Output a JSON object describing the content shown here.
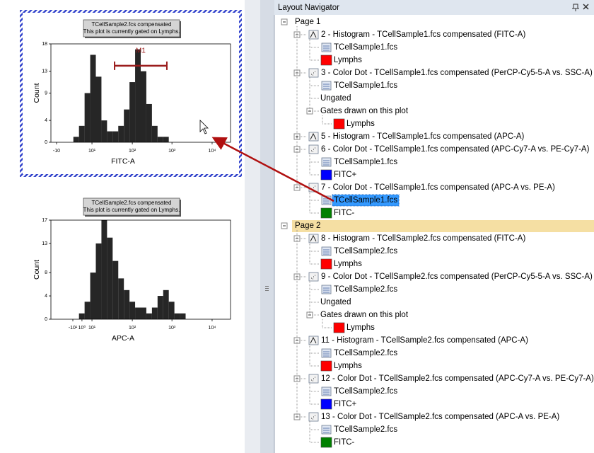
{
  "chart_data": [
    {
      "type": "histogram",
      "title": "TCellSample2.fcs compensated",
      "subtitle": "This plot is currently gated on Lymphs.",
      "x_label": "FITC-A",
      "y_label": "Count",
      "color": "#000000",
      "selected": true,
      "bins": [
        0,
        32,
        64,
        96,
        128,
        160,
        192,
        224,
        256,
        288,
        320,
        352,
        384,
        416,
        448,
        480,
        512,
        544,
        576,
        608,
        640,
        672,
        704,
        736,
        768,
        800,
        832,
        864,
        896,
        928,
        960,
        992,
        1024
      ],
      "values": [
        0,
        0,
        0,
        0,
        1,
        3,
        9,
        16,
        12,
        4,
        2,
        2,
        3,
        6,
        11,
        17,
        13,
        7,
        3,
        1,
        1,
        0,
        0,
        0,
        0,
        0,
        0,
        0,
        0,
        0,
        0,
        0
      ],
      "xlim": [
        0,
        1024
      ],
      "ylim": [
        0,
        18
      ],
      "yticks": [
        0,
        4,
        9,
        13,
        18
      ],
      "xticks": [
        {
          "value": 32,
          "label": "-10"
        },
        {
          "value": 234,
          "label": "10¹"
        },
        {
          "value": 464,
          "label": "10²"
        },
        {
          "value": 690,
          "label": "10³"
        },
        {
          "value": 919,
          "label": "10⁴"
        }
      ],
      "gate": {
        "label": "M1",
        "range": [
          363,
          661
        ],
        "level": 14,
        "color": "#9b1c1c"
      }
    },
    {
      "type": "histogram",
      "title": "TCellSample2.fcs compensated",
      "subtitle": "This plot is currently gated on Lymphs.",
      "x_label": "APC-A",
      "y_label": "Count",
      "color": "#000000",
      "selected": false,
      "bins": [
        0,
        32,
        64,
        96,
        128,
        160,
        192,
        224,
        256,
        288,
        320,
        352,
        384,
        416,
        448,
        480,
        512,
        544,
        576,
        608,
        640,
        672,
        704,
        736,
        768,
        800,
        832,
        864,
        896,
        928,
        960,
        992,
        1024
      ],
      "values": [
        0,
        0,
        0,
        0,
        0,
        1,
        3,
        8,
        13,
        17,
        14,
        10,
        7,
        5,
        3,
        2,
        2,
        1,
        2,
        4,
        5,
        3,
        1,
        1,
        0,
        0,
        0,
        0,
        0,
        0,
        0,
        0
      ],
      "xlim": [
        0,
        1024
      ],
      "ylim": [
        0,
        17
      ],
      "yticks": [
        0,
        4,
        8,
        13,
        17
      ],
      "xticks": [
        {
          "value": 125,
          "label": "-10¹"
        },
        {
          "value": 177,
          "label": "10⁰"
        },
        {
          "value": 234,
          "label": "10¹"
        },
        {
          "value": 464,
          "label": "10²"
        },
        {
          "value": 690,
          "label": "10³"
        },
        {
          "value": 919,
          "label": "10⁴"
        }
      ]
    }
  ],
  "navigator": {
    "title": "Layout Navigator",
    "nodes": [
      {
        "text": "Page 1",
        "level": 0,
        "expanded": true
      },
      {
        "text": "2 - Histogram - TCellSample1.fcs compensated (FITC-A)",
        "level": 1,
        "icon": "histogram",
        "expanded": true
      },
      {
        "text": "TCellSample1.fcs",
        "level": 2,
        "icon": "file"
      },
      {
        "text": "Lymphs",
        "level": 2,
        "icon": "swatch",
        "color": "#ff0000"
      },
      {
        "text": "3 - Color Dot - TCellSample1.fcs compensated (PerCP-Cy5-5-A vs. SSC-A)",
        "level": 1,
        "icon": "dot",
        "expanded": true
      },
      {
        "text": "TCellSample1.fcs",
        "level": 2,
        "icon": "file"
      },
      {
        "text": "Ungated",
        "level": 2
      },
      {
        "text": "Gates drawn on this plot",
        "level": 2,
        "expanded": true
      },
      {
        "text": "Lymphs",
        "level": 3,
        "icon": "swatch",
        "color": "#ff0000"
      },
      {
        "text": "5 - Histogram - TCellSample1.fcs compensated (APC-A)",
        "level": 1,
        "icon": "histogram",
        "expanded": false
      },
      {
        "text": "6 - Color Dot - TCellSample1.fcs compensated (APC-Cy7-A vs. PE-Cy7-A)",
        "level": 1,
        "icon": "dot",
        "expanded": true
      },
      {
        "text": "TCellSample1.fcs",
        "level": 2,
        "icon": "file"
      },
      {
        "text": "FITC+",
        "level": 2,
        "icon": "swatch",
        "color": "#0000ff"
      },
      {
        "text": "7 - Color Dot - TCellSample1.fcs compensated (APC-A vs. PE-A)",
        "level": 1,
        "icon": "dot",
        "expanded": true
      },
      {
        "text": "TCellSample1.fcs",
        "level": 2,
        "icon": "file",
        "selected": true
      },
      {
        "text": "FITC-",
        "level": 2,
        "icon": "swatch",
        "color": "#008000"
      },
      {
        "text": "Page 2",
        "level": 0,
        "expanded": true,
        "highlighted": true
      },
      {
        "text": "8 - Histogram - TCellSample2.fcs compensated (FITC-A)",
        "level": 1,
        "icon": "histogram",
        "expanded": true
      },
      {
        "text": "TCellSample2.fcs",
        "level": 2,
        "icon": "file"
      },
      {
        "text": "Lymphs",
        "level": 2,
        "icon": "swatch",
        "color": "#ff0000"
      },
      {
        "text": "9 - Color Dot - TCellSample2.fcs compensated (PerCP-Cy5-5-A vs. SSC-A)",
        "level": 1,
        "icon": "dot",
        "expanded": true
      },
      {
        "text": "TCellSample2.fcs",
        "level": 2,
        "icon": "file"
      },
      {
        "text": "Ungated",
        "level": 2
      },
      {
        "text": "Gates drawn on this plot",
        "level": 2,
        "expanded": true
      },
      {
        "text": "Lymphs",
        "level": 3,
        "icon": "swatch",
        "color": "#ff0000"
      },
      {
        "text": "11 - Histogram - TCellSample2.fcs compensated (APC-A)",
        "level": 1,
        "icon": "histogram",
        "expanded": true
      },
      {
        "text": "TCellSample2.fcs",
        "level": 2,
        "icon": "file"
      },
      {
        "text": "Lymphs",
        "level": 2,
        "icon": "swatch",
        "color": "#ff0000"
      },
      {
        "text": "12 - Color Dot - TCellSample2.fcs compensated (APC-Cy7-A vs. PE-Cy7-A)",
        "level": 1,
        "icon": "dot",
        "expanded": true
      },
      {
        "text": "TCellSample2.fcs",
        "level": 2,
        "icon": "file"
      },
      {
        "text": "FITC+",
        "level": 2,
        "icon": "swatch",
        "color": "#0000ff"
      },
      {
        "text": "13 - Color Dot - TCellSample2.fcs compensated (APC-A vs. PE-A)",
        "level": 1,
        "icon": "dot",
        "expanded": true
      },
      {
        "text": "TCellSample2.fcs",
        "level": 2,
        "icon": "file"
      },
      {
        "text": "FITC-",
        "level": 2,
        "icon": "swatch",
        "color": "#008000"
      }
    ]
  }
}
